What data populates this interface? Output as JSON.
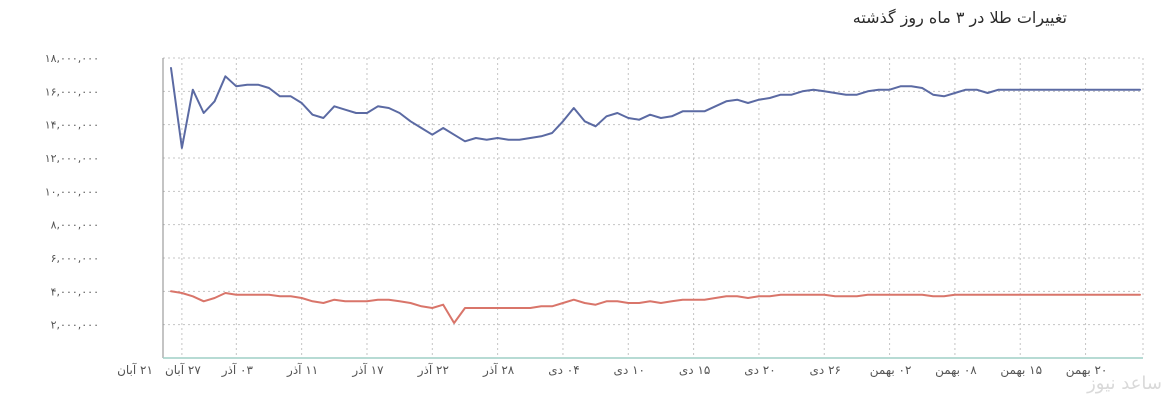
{
  "page": {
    "watermark_text": "ساعد نیوز"
  },
  "chart_data": {
    "type": "line",
    "title": "تغییرات طلا در ۳ ماه روز گذشته",
    "xlabel": "",
    "ylabel": "",
    "ylim": [
      0,
      18000000
    ],
    "y_ticks": [
      2000000,
      4000000,
      6000000,
      8000000,
      10000000,
      12000000,
      14000000,
      16000000,
      18000000
    ],
    "y_tick_labels": [
      "۲,۰۰۰,۰۰۰",
      "۴,۰۰۰,۰۰۰",
      "۶,۰۰۰,۰۰۰",
      "۸,۰۰۰,۰۰۰",
      "۱۰,۰۰۰,۰۰۰",
      "۱۲,۰۰۰,۰۰۰",
      "۱۴,۰۰۰,۰۰۰",
      "۱۶,۰۰۰,۰۰۰",
      "۱۸,۰۰۰,۰۰۰"
    ],
    "x_start_label": "۲۱ آبان",
    "x_tick_labels": [
      "۲۷ آبان",
      "۰۳ آذر",
      "۱۱ آذر",
      "۱۷ آذر",
      "۲۲ آذر",
      "۲۸ آذر",
      "۰۴ دی",
      "۱۰ دی",
      "۱۵ دی",
      "۲۰ دی",
      "۲۶ دی",
      "۰۲ بهمن",
      "۰۸ بهمن",
      "۱۵ بهمن",
      "۲۰ بهمن"
    ],
    "x_tick_index": [
      1,
      6,
      12,
      18,
      24,
      30,
      36,
      42,
      48,
      54,
      60,
      66,
      72,
      78,
      84
    ],
    "n_points": 90,
    "grid": true,
    "legend": "none",
    "series": [
      {
        "color": "#5b6aa3",
        "values": [
          17400000,
          12600000,
          16100000,
          14700000,
          15400000,
          16900000,
          16300000,
          16400000,
          16400000,
          16200000,
          15700000,
          15700000,
          15300000,
          14600000,
          14400000,
          15100000,
          14900000,
          14700000,
          14700000,
          15100000,
          15000000,
          14700000,
          14200000,
          13800000,
          13400000,
          13800000,
          13400000,
          13000000,
          13200000,
          13100000,
          13200000,
          13100000,
          13100000,
          13200000,
          13300000,
          13500000,
          14200000,
          15000000,
          14200000,
          13900000,
          14500000,
          14700000,
          14400000,
          14300000,
          14600000,
          14400000,
          14500000,
          14800000,
          14800000,
          14800000,
          15100000,
          15400000,
          15500000,
          15300000,
          15500000,
          15600000,
          15800000,
          15800000,
          16000000,
          16100000,
          16000000,
          15900000,
          15800000,
          15800000,
          16000000,
          16100000,
          16100000,
          16300000,
          16300000,
          16200000,
          15800000,
          15700000,
          15900000,
          16100000,
          16100000,
          15900000,
          16100000,
          16100000,
          16100000,
          16100000,
          16100000,
          16100000,
          16100000,
          16100000,
          16100000,
          16100000,
          16100000,
          16100000,
          16100000,
          16100000
        ]
      },
      {
        "color": "#d9756a",
        "values": [
          4000000,
          3900000,
          3700000,
          3400000,
          3600000,
          3900000,
          3800000,
          3800000,
          3800000,
          3800000,
          3700000,
          3700000,
          3600000,
          3400000,
          3300000,
          3500000,
          3400000,
          3400000,
          3400000,
          3500000,
          3500000,
          3400000,
          3300000,
          3100000,
          3000000,
          3200000,
          2100000,
          3000000,
          3000000,
          3000000,
          3000000,
          3000000,
          3000000,
          3000000,
          3100000,
          3100000,
          3300000,
          3500000,
          3300000,
          3200000,
          3400000,
          3400000,
          3300000,
          3300000,
          3400000,
          3300000,
          3400000,
          3500000,
          3500000,
          3500000,
          3600000,
          3700000,
          3700000,
          3600000,
          3700000,
          3700000,
          3800000,
          3800000,
          3800000,
          3800000,
          3800000,
          3700000,
          3700000,
          3700000,
          3800000,
          3800000,
          3800000,
          3800000,
          3800000,
          3800000,
          3700000,
          3700000,
          3800000,
          3800000,
          3800000,
          3800000,
          3800000,
          3800000,
          3800000,
          3800000,
          3800000,
          3800000,
          3800000,
          3800000,
          3800000,
          3800000,
          3800000,
          3800000,
          3800000,
          3800000
        ]
      }
    ]
  }
}
